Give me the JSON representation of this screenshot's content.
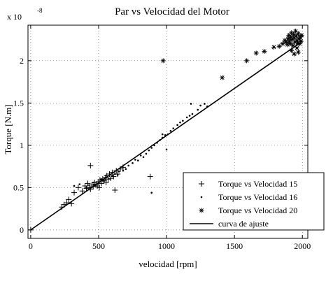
{
  "chart_data": {
    "type": "scatter",
    "title": "Par vs Velocidad del Motor",
    "xlabel": "velocidad [rpm]",
    "ylabel": "Torque [N.m]",
    "y_multiplier": "x 10",
    "y_exponent": "-8",
    "xlim": [
      -20,
      2040
    ],
    "ylim": [
      -0.1,
      2.42
    ],
    "x_ticks": [
      0,
      500,
      1000,
      1500,
      2000
    ],
    "y_ticks": [
      0,
      0.5,
      1,
      1.5,
      2
    ],
    "grid": "dotted",
    "legend_position": "bottom-right",
    "series": [
      {
        "name": "Torque vs Velocidad 15",
        "marker": "plus",
        "points": [
          [
            0,
            0
          ],
          [
            230,
            0.27
          ],
          [
            245,
            0.3
          ],
          [
            265,
            0.32
          ],
          [
            280,
            0.36
          ],
          [
            300,
            0.31
          ],
          [
            320,
            0.44
          ],
          [
            350,
            0.5
          ],
          [
            380,
            0.46
          ],
          [
            400,
            0.52
          ],
          [
            410,
            0.49
          ],
          [
            420,
            0.55
          ],
          [
            430,
            0.5
          ],
          [
            440,
            0.48
          ],
          [
            450,
            0.53
          ],
          [
            460,
            0.51
          ],
          [
            470,
            0.56
          ],
          [
            480,
            0.54
          ],
          [
            490,
            0.52
          ],
          [
            500,
            0.57
          ],
          [
            505,
            0.5
          ],
          [
            510,
            0.59
          ],
          [
            520,
            0.55
          ],
          [
            530,
            0.6
          ],
          [
            540,
            0.58
          ],
          [
            550,
            0.62
          ],
          [
            555,
            0.56
          ],
          [
            560,
            0.64
          ],
          [
            570,
            0.6
          ],
          [
            580,
            0.66
          ],
          [
            590,
            0.61
          ],
          [
            600,
            0.68
          ],
          [
            610,
            0.63
          ],
          [
            620,
            0.47
          ],
          [
            630,
            0.7
          ],
          [
            640,
            0.66
          ],
          [
            660,
            0.72
          ],
          [
            680,
            0.74
          ],
          [
            440,
            0.76
          ],
          [
            880,
            0.63
          ]
        ]
      },
      {
        "name": "Torque vs Velocidad 16",
        "marker": "dot",
        "points": [
          [
            320,
            0.52
          ],
          [
            360,
            0.54
          ],
          [
            410,
            0.5
          ],
          [
            430,
            0.53
          ],
          [
            460,
            0.56
          ],
          [
            500,
            0.55
          ],
          [
            520,
            0.6
          ],
          [
            540,
            0.58
          ],
          [
            600,
            0.64
          ],
          [
            620,
            0.66
          ],
          [
            640,
            0.65
          ],
          [
            650,
            0.69
          ],
          [
            680,
            0.7
          ],
          [
            700,
            0.72
          ],
          [
            720,
            0.76
          ],
          [
            750,
            0.79
          ],
          [
            770,
            0.83
          ],
          [
            790,
            0.82
          ],
          [
            810,
            0.88
          ],
          [
            830,
            0.86
          ],
          [
            850,
            0.9
          ],
          [
            870,
            0.94
          ],
          [
            890,
            0.97
          ],
          [
            910,
            1.0
          ],
          [
            930,
            1.03
          ],
          [
            950,
            1.06
          ],
          [
            970,
            1.09
          ],
          [
            990,
            1.12
          ],
          [
            1010,
            1.13
          ],
          [
            1030,
            1.17
          ],
          [
            1050,
            1.2
          ],
          [
            1080,
            1.24
          ],
          [
            1100,
            1.27
          ],
          [
            1120,
            1.29
          ],
          [
            1150,
            1.33
          ],
          [
            1170,
            1.35
          ],
          [
            1190,
            1.37
          ],
          [
            1230,
            1.42
          ],
          [
            1250,
            1.47
          ],
          [
            1280,
            1.49
          ],
          [
            1300,
            1.46
          ],
          [
            1180,
            1.49
          ],
          [
            890,
            0.44
          ],
          [
            970,
            1.13
          ],
          [
            1000,
            0.95
          ]
        ]
      },
      {
        "name": "Torque vs Velocidad 20",
        "marker": "star",
        "points": [
          [
            975,
            2.0
          ],
          [
            1410,
            1.8
          ],
          [
            1590,
            2.0
          ],
          [
            1660,
            2.09
          ],
          [
            1720,
            2.11
          ],
          [
            1790,
            2.16
          ],
          [
            1830,
            2.17
          ],
          [
            1855,
            2.2
          ],
          [
            1870,
            2.24
          ],
          [
            1880,
            2.22
          ],
          [
            1890,
            2.19
          ],
          [
            1895,
            2.26
          ],
          [
            1900,
            2.3
          ],
          [
            1905,
            2.23
          ],
          [
            1910,
            2.2
          ],
          [
            1915,
            2.28
          ],
          [
            1920,
            2.33
          ],
          [
            1925,
            2.25
          ],
          [
            1930,
            2.18
          ],
          [
            1935,
            2.31
          ],
          [
            1940,
            2.27
          ],
          [
            1945,
            2.22
          ],
          [
            1950,
            2.35
          ],
          [
            1955,
            2.29
          ],
          [
            1960,
            2.24
          ],
          [
            1965,
            2.21
          ],
          [
            1970,
            2.32
          ],
          [
            1975,
            2.26
          ],
          [
            1980,
            2.2
          ],
          [
            1985,
            2.28
          ],
          [
            1990,
            2.23
          ],
          [
            1995,
            2.3
          ],
          [
            1920,
            2.12
          ],
          [
            1940,
            2.08
          ],
          [
            1960,
            2.15
          ],
          [
            1970,
            2.1
          ]
        ]
      },
      {
        "name": "curva de ajuste",
        "marker": "line",
        "points": [
          [
            0,
            0
          ],
          [
            2000,
            2.23
          ]
        ]
      }
    ]
  }
}
